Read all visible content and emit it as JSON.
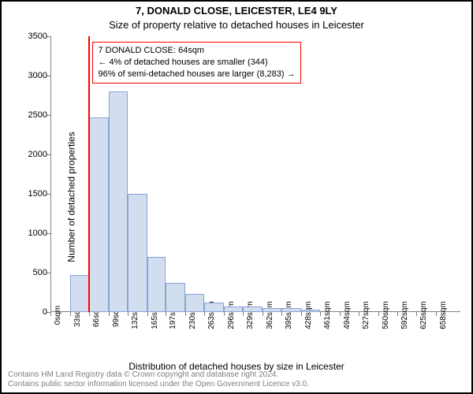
{
  "title": "7, DONALD CLOSE, LEICESTER, LE4 9LY",
  "subtitle": "Size of property relative to detached houses in Leicester",
  "ylabel": "Number of detached properties",
  "xlabel": "Distribution of detached houses by size in Leicester",
  "footer": {
    "line1": "Contains HM Land Registry data © Crown copyright and database right 2024.",
    "line2": "Contains public sector information licensed under the Open Government Licence v3.0."
  },
  "chart": {
    "type": "histogram",
    "ylim": [
      0,
      3500
    ],
    "ytick_step": 500,
    "yticks": [
      0,
      500,
      1000,
      1500,
      2000,
      2500,
      3000,
      3500
    ],
    "xticks_labels": [
      "0sqm",
      "33sqm",
      "66sqm",
      "99sqm",
      "132sqm",
      "165sqm",
      "197sqm",
      "230sqm",
      "263sqm",
      "296sqm",
      "329sqm",
      "362sqm",
      "395sqm",
      "428sqm",
      "461sqm",
      "494sqm",
      "527sqm",
      "560sqm",
      "592sqm",
      "625sqm",
      "658sqm"
    ],
    "xticks_values": [
      0,
      33,
      66,
      99,
      132,
      165,
      197,
      230,
      263,
      296,
      329,
      362,
      395,
      428,
      461,
      494,
      527,
      560,
      592,
      625,
      658
    ],
    "x_max": 700,
    "bar_edges": [
      0,
      33,
      66,
      99,
      132,
      165,
      197,
      230,
      263,
      296,
      329,
      362,
      395,
      428
    ],
    "bar_values": [
      0,
      470,
      2470,
      2800,
      1500,
      700,
      370,
      230,
      120,
      70,
      70,
      50,
      50,
      30
    ],
    "bar_color": "#d2deef",
    "bar_border": "#88a4d4",
    "background_color": "#ffffff",
    "axis_color": "#808080",
    "tick_fontsize": 11,
    "label_fontsize": 12,
    "marker": {
      "x": 64,
      "color": "#ff0000"
    },
    "annotation": {
      "line1": "7 DONALD CLOSE: 64sqm",
      "line2": "← 4% of detached houses are smaller (344)",
      "line3": "96% of semi-detached houses are larger (8,283) →",
      "border_color": "#ff0000",
      "bg_color": "#ffffff",
      "fontsize": 11,
      "x": 72,
      "y_top": 3430
    }
  }
}
